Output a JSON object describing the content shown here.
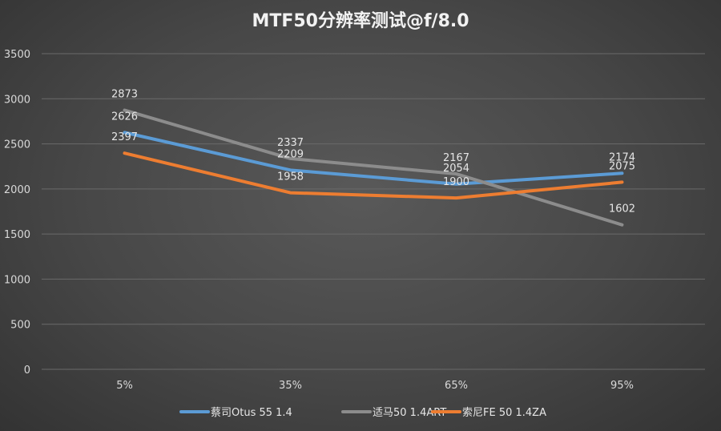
{
  "chart_data": {
    "type": "line",
    "title": "MTF50分辨率测试@f/8.0",
    "categories": [
      "5%",
      "35%",
      "65%",
      "95%"
    ],
    "ylim": [
      0,
      3500
    ],
    "yticks": [
      "0",
      "500",
      "1000",
      "1500",
      "2000",
      "2500",
      "3000",
      "3500"
    ],
    "ytick_values": [
      0,
      500,
      1000,
      1500,
      2000,
      2500,
      3000,
      3500
    ],
    "grid": true,
    "legend_position": "bottom",
    "series": [
      {
        "name": "蔡司Otus 55 1.4",
        "color": "#5b9bd5",
        "values": [
          2626,
          2209,
          2054,
          2174
        ],
        "labels": [
          "2626",
          "2209",
          "2054",
          "2174"
        ]
      },
      {
        "name": "适马50 1.4ART",
        "color": "#8c8c8c",
        "values": [
          2873,
          2337,
          2167,
          1602
        ],
        "labels": [
          "2873",
          "2337",
          "2167",
          "1602"
        ]
      },
      {
        "name": "索尼FE 50 1.4ZA",
        "color": "#ed7d31",
        "values": [
          2397,
          1958,
          1900,
          2075
        ],
        "labels": [
          "2397",
          "1958",
          "1900",
          "2075"
        ]
      }
    ]
  }
}
